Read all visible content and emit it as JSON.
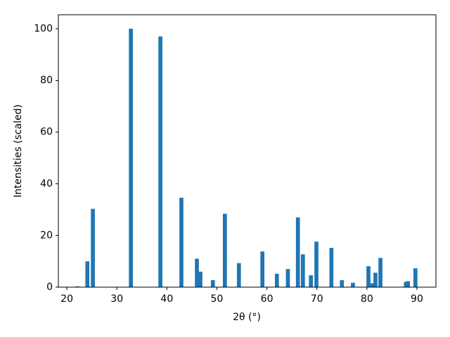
{
  "chart_data": {
    "type": "bar",
    "xlabel": "2θ (°)",
    "ylabel": "Intensities (scaled)",
    "x": [
      22.1,
      24.1,
      25.2,
      32.8,
      38.7,
      42.9,
      46.0,
      46.7,
      49.2,
      51.6,
      54.4,
      59.1,
      62.0,
      64.2,
      66.2,
      67.2,
      68.8,
      69.9,
      72.9,
      75.0,
      77.2,
      80.3,
      81.1,
      81.7,
      82.7,
      87.8,
      88.2,
      89.7
    ],
    "values": [
      0.3,
      10,
      30.3,
      100,
      97,
      34.6,
      11,
      6,
      2.7,
      28.4,
      9.3,
      13.8,
      5.2,
      7,
      27,
      12.7,
      4.6,
      17.6,
      15.2,
      2.7,
      1.7,
      8.1,
      1.5,
      5.6,
      11.3,
      2,
      2.3,
      7.3
    ],
    "color": "#1f77b4",
    "xlim": [
      18.3,
      93.8
    ],
    "ylim": [
      0,
      105.4
    ],
    "xticks": [
      20,
      30,
      40,
      50,
      60,
      70,
      80,
      90
    ],
    "yticks": [
      0,
      20,
      40,
      60,
      80,
      100
    ],
    "grid": false
  }
}
